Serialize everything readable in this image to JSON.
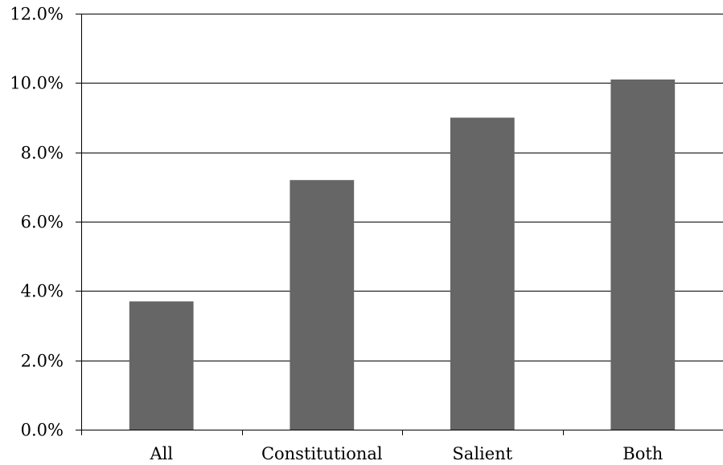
{
  "chart_data": {
    "type": "bar",
    "categories": [
      "All",
      "Constitutional",
      "Salient",
      "Both"
    ],
    "values": [
      3.7,
      7.2,
      9.0,
      10.1
    ],
    "title": "",
    "xlabel": "",
    "ylabel": "",
    "ylim": [
      0,
      12
    ],
    "yticks": [
      0,
      2,
      4,
      6,
      8,
      10,
      12
    ],
    "ytick_labels": [
      "0.0%",
      "2.0%",
      "4.0%",
      "6.0%",
      "8.0%",
      "10.0%",
      "12.0%"
    ],
    "grid": true,
    "legend": "none",
    "bar_color": "#666666",
    "grid_color": "#000000"
  }
}
